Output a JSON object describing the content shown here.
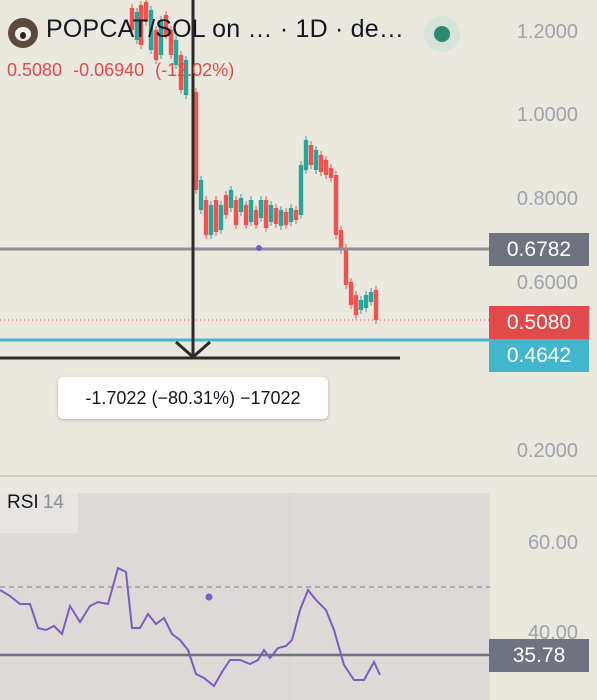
{
  "header": {
    "title": "POPCAT/SOL on … · 1D · de…",
    "quote": {
      "last": "0.5080",
      "change": "-0.06940",
      "change_pct": "(-12.02%)"
    },
    "status_color": "#2c8a6e"
  },
  "price_axis": {
    "ticks": [
      "1.2000",
      "1.0000",
      "0.8000",
      "0.6000",
      "0.2000"
    ]
  },
  "price_tags": [
    {
      "label": "0.6782",
      "color": "#6f7380"
    },
    {
      "label": "0.5080",
      "color": "#e04a4a"
    },
    {
      "label": "0.4642",
      "color": "#42b6cc"
    }
  ],
  "measure": {
    "label": "-1.7022 (−80.31%) −17022"
  },
  "rsi": {
    "title": "RSI",
    "length": "14",
    "ticks": [
      "60.00",
      "40.00"
    ],
    "value": "35.78",
    "value_color": "#6f7380",
    "line_color": "#7c5cc4"
  },
  "colors": {
    "up": "#26a69a",
    "down": "#ef5350",
    "background": "#ebe8df"
  }
}
